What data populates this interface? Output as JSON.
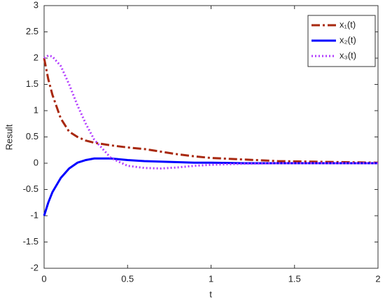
{
  "chart_data": {
    "type": "line",
    "x_label": "t",
    "y_label": "Result",
    "x": [
      0,
      0.025,
      0.05,
      0.1,
      0.15,
      0.2,
      0.25,
      0.3,
      0.4,
      0.5,
      0.6,
      0.7,
      0.8,
      0.9,
      1,
      1.2,
      1.4,
      1.6,
      1.8,
      2
    ],
    "series": [
      {
        "name": "x₁(t)",
        "color": "#a8280f",
        "linestyle": "dash-dot",
        "values": [
          2.0,
          1.6,
          1.3,
          0.85,
          0.6,
          0.5,
          0.43,
          0.39,
          0.34,
          0.3,
          0.27,
          0.22,
          0.17,
          0.13,
          0.1,
          0.07,
          0.04,
          0.03,
          0.02,
          0.01
        ]
      },
      {
        "name": "x₂(t)",
        "color": "#0000ff",
        "linestyle": "solid",
        "values": [
          -1.0,
          -0.75,
          -0.55,
          -0.28,
          -0.1,
          0.01,
          0.06,
          0.09,
          0.09,
          0.06,
          0.04,
          0.03,
          0.02,
          0.01,
          0.01,
          0,
          0,
          0,
          0,
          0
        ]
      },
      {
        "name": "x₃(t)",
        "color": "#b23cff",
        "linestyle": "dotted",
        "values": [
          2.0,
          2.05,
          2.03,
          1.85,
          1.5,
          1.1,
          0.75,
          0.45,
          0.1,
          -0.05,
          -0.09,
          -0.1,
          -0.08,
          -0.05,
          -0.03,
          -0.01,
          0,
          0,
          0,
          0
        ]
      }
    ],
    "xlim": [
      0,
      2
    ],
    "ylim": [
      -2,
      3
    ],
    "xticks": [
      0,
      0.5,
      1,
      1.5,
      2
    ],
    "yticks": [
      -2,
      -1.5,
      -1,
      -0.5,
      0,
      0.5,
      1,
      1.5,
      2,
      2.5,
      3
    ],
    "grid": false,
    "legend_position": "top-right"
  }
}
